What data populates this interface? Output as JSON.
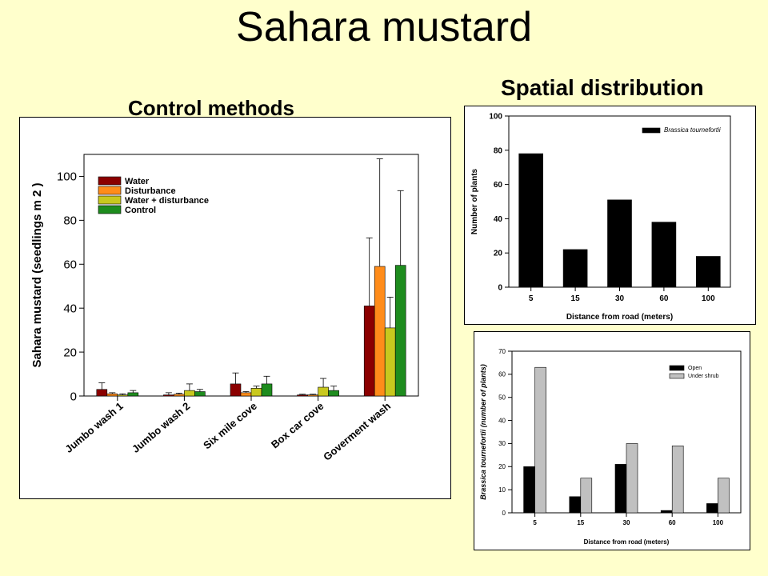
{
  "page": {
    "title": "Sahara mustard",
    "left_heading": "Control methods",
    "right_heading": "Spatial distribution"
  },
  "chart_data": [
    {
      "type": "bar",
      "categories": [
        "Jumbo wash 1",
        "Jumbo wash 2",
        "Six mile cove",
        "Box car cove",
        "Goverment wash"
      ],
      "ylabel": "Sahara mustard (seedlings m 2 )",
      "ylim": [
        0,
        110
      ],
      "yticks": [
        0,
        20,
        40,
        60,
        80,
        100
      ],
      "legend_position": "top-left",
      "series": [
        {
          "name": "Water",
          "color": "#8b0000",
          "values": [
            3,
            0.5,
            5.5,
            0.5,
            41
          ],
          "errors": [
            3,
            1,
            5,
            0.3,
            31
          ]
        },
        {
          "name": "Disturbance",
          "color": "#ff8c1a",
          "values": [
            1,
            0.8,
            1.5,
            0.5,
            59
          ],
          "errors": [
            0.5,
            0.5,
            0.5,
            0.3,
            49
          ]
        },
        {
          "name": "Water + disturbance",
          "color": "#c8c81e",
          "values": [
            0.5,
            2.5,
            3.5,
            4,
            31
          ],
          "errors": [
            0.5,
            3,
            1,
            4,
            14
          ]
        },
        {
          "name": "Control",
          "color": "#1e8c1e",
          "values": [
            1.5,
            2,
            5.5,
            2.5,
            59.5
          ],
          "errors": [
            1,
            1,
            3.5,
            2,
            34
          ]
        }
      ]
    },
    {
      "type": "bar",
      "categories": [
        "5",
        "15",
        "30",
        "60",
        "100"
      ],
      "xlabel": "Distance from road (meters)",
      "ylabel": "Number of plants",
      "ylim": [
        0,
        100
      ],
      "yticks": [
        0,
        20,
        40,
        60,
        80,
        100
      ],
      "legend_position": "top-right",
      "series": [
        {
          "name": "Brassica tournefortii",
          "color": "#000000",
          "values": [
            78,
            22,
            51,
            38,
            18
          ]
        }
      ]
    },
    {
      "type": "bar",
      "categories": [
        "5",
        "15",
        "30",
        "60",
        "100"
      ],
      "xlabel": "Distance from road (meters)",
      "ylabel": "Brassica tournefortii (number of plants)",
      "ylim": [
        0,
        70
      ],
      "yticks": [
        0,
        10,
        20,
        30,
        40,
        50,
        60,
        70
      ],
      "legend_position": "top-right",
      "series": [
        {
          "name": "Open",
          "color": "#000000",
          "values": [
            20,
            7,
            21,
            1,
            4
          ]
        },
        {
          "name": "Under shrub",
          "color": "#c0c0c0",
          "values": [
            63,
            15,
            30,
            29,
            15
          ]
        }
      ]
    }
  ]
}
